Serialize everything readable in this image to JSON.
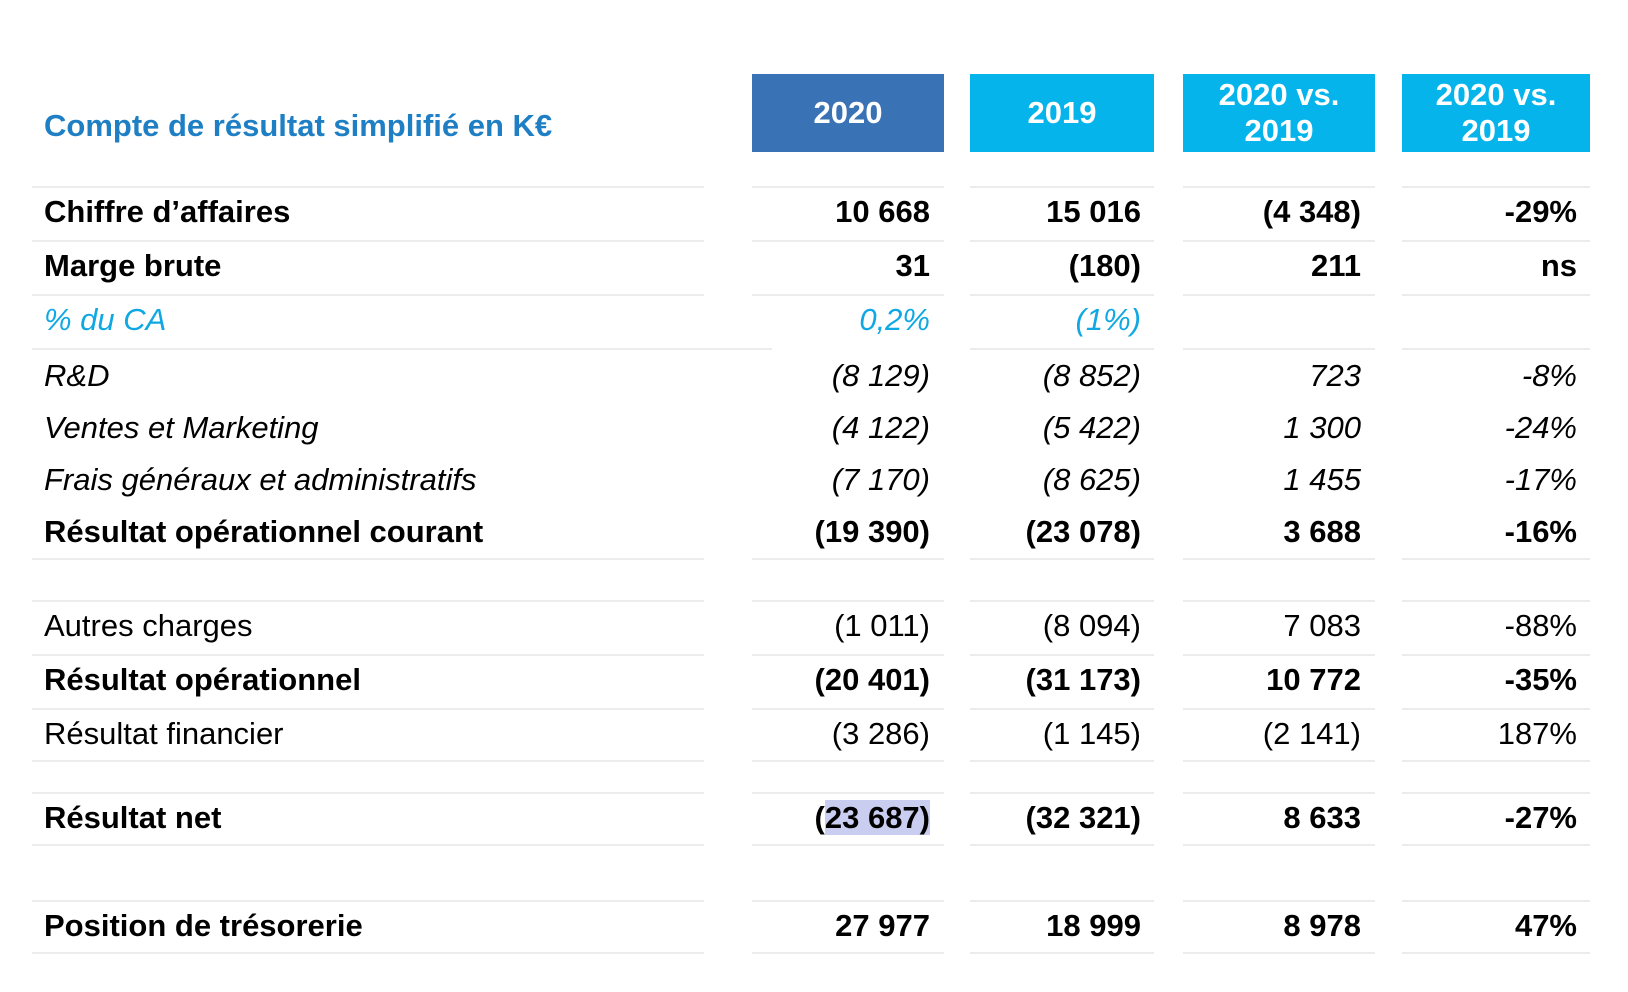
{
  "title": "Compte de résultat simplifié en K€",
  "columns": [
    {
      "line1": "2020",
      "line2": ""
    },
    {
      "line1": "2019",
      "line2": ""
    },
    {
      "line1": "2020 vs.",
      "line2": "2019"
    },
    {
      "line1": "2020 vs.",
      "line2": "2019"
    }
  ],
  "colors": {
    "title": "#1f7fc4",
    "header_dark": "#3a73b5",
    "header_light": "#06b4ec",
    "ratio_text": "#10a8e2",
    "highlight": "#c9cdf0"
  },
  "rows": [
    {
      "label": "Chiffre d’affaires",
      "v2020": "10 668",
      "v2019": "15 016",
      "diff": "(4 348)",
      "pct": "-29%",
      "style": "bold"
    },
    {
      "label": "Marge brute",
      "v2020": "31",
      "v2019": "(180)",
      "diff": "211",
      "pct": "ns",
      "style": "bold"
    },
    {
      "label": "% du CA",
      "v2020": "0,2%",
      "v2019": "(1%)",
      "diff": "",
      "pct": "",
      "style": "blue"
    },
    {
      "label": "R&D",
      "v2020": "(8 129)",
      "v2019": "(8 852)",
      "diff": "723",
      "pct": "-8%",
      "style": "italic"
    },
    {
      "label": "Ventes et Marketing",
      "v2020": "(4 122)",
      "v2019": "(5 422)",
      "diff": "1 300",
      "pct": "-24%",
      "style": "italic"
    },
    {
      "label": "Frais généraux et administratifs",
      "v2020": "(7 170)",
      "v2019": "(8 625)",
      "diff": "1 455",
      "pct": "-17%",
      "style": "italic"
    },
    {
      "label": "Résultat opérationnel courant",
      "v2020": "(19 390)",
      "v2019": "(23 078)",
      "diff": "3 688",
      "pct": "-16%",
      "style": "bold"
    },
    {
      "label": "Autres charges",
      "v2020": "(1 011)",
      "v2019": "(8 094)",
      "diff": "7 083",
      "pct": "-88%",
      "style": "normal"
    },
    {
      "label": "Résultat opérationnel",
      "v2020": "(20 401)",
      "v2019": "(31 173)",
      "diff": "10 772",
      "pct": "-35%",
      "style": "bold"
    },
    {
      "label": "Résultat financier",
      "v2020": "(3 286)",
      "v2019": "(1 145)",
      "diff": "(2 141)",
      "pct": "187%",
      "style": "normal"
    },
    {
      "label": "Résultat net",
      "v2020_open": "(",
      "v2020_selected": "23 687)",
      "v2019": "(32 321)",
      "diff": "8 633",
      "pct": "-27%",
      "style": "bold"
    },
    {
      "label": "Position de trésorerie",
      "v2020": "27 977",
      "v2019": "18 999",
      "diff": "8 978",
      "pct": "47%",
      "style": "bold"
    }
  ]
}
